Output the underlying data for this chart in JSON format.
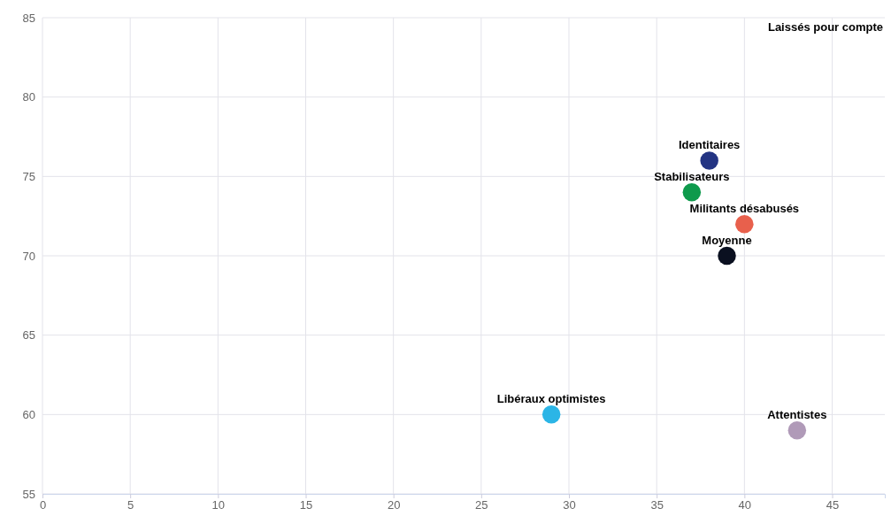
{
  "chart_data": {
    "type": "scatter",
    "xlim": [
      0,
      48
    ],
    "ylim": [
      55,
      85
    ],
    "xticks": [
      0,
      5,
      10,
      15,
      20,
      25,
      30,
      35,
      40,
      45
    ],
    "yticks": [
      55,
      60,
      65,
      70,
      75,
      80,
      85
    ],
    "grid": true,
    "marker": "circle",
    "legend": false,
    "series": [
      {
        "name": "Identitaires",
        "color": "#233483",
        "x": [
          38
        ],
        "values": [
          76
        ]
      },
      {
        "name": "Stabilisateurs",
        "color": "#0e9a4c",
        "x": [
          37
        ],
        "values": [
          74
        ]
      },
      {
        "name": "Militants désabusés",
        "color": "#e8604c",
        "x": [
          40
        ],
        "values": [
          72
        ]
      },
      {
        "name": "Moyenne",
        "color": "#0a1020",
        "x": [
          39
        ],
        "values": [
          70
        ]
      },
      {
        "name": "Libéraux optimistes",
        "color": "#2bb5e6",
        "x": [
          29
        ],
        "values": [
          60
        ]
      },
      {
        "name": "Attentistes",
        "color": "#b09ab8",
        "x": [
          43
        ],
        "values": [
          59
        ]
      }
    ],
    "annotations": [
      "Laissés pour compte"
    ]
  }
}
